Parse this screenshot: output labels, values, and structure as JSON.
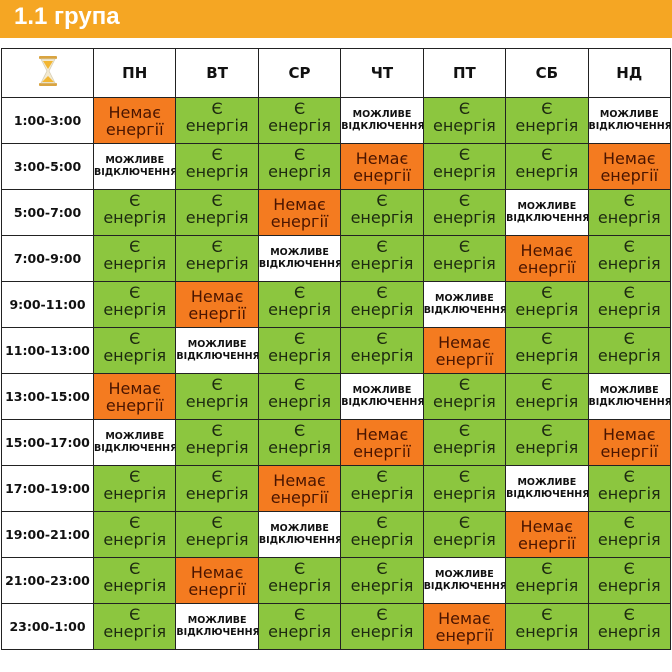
{
  "title": "1.1 група",
  "corner_icon": "hourglass-icon",
  "colors": {
    "header": "#f5a623",
    "no_power": "#f47b20",
    "power": "#8cc63f",
    "maybe": "#ffffff"
  },
  "days": [
    "ПН",
    "ВТ",
    "СР",
    "ЧТ",
    "ПТ",
    "СБ",
    "НД"
  ],
  "legend": {
    "E": [
      "Є",
      "енергія"
    ],
    "N": [
      "Немає",
      "енергії"
    ],
    "M": [
      "МОЖЛИВЕ",
      "ВІДКЛЮЧЕННЯ"
    ]
  },
  "rows": [
    {
      "time": "1:00-3:00",
      "cells": [
        "N",
        "E",
        "E",
        "M",
        "E",
        "E",
        "M"
      ]
    },
    {
      "time": "3:00-5:00",
      "cells": [
        "M",
        "E",
        "E",
        "N",
        "E",
        "E",
        "N"
      ]
    },
    {
      "time": "5:00-7:00",
      "cells": [
        "E",
        "E",
        "N",
        "E",
        "E",
        "M",
        "E"
      ]
    },
    {
      "time": "7:00-9:00",
      "cells": [
        "E",
        "E",
        "M",
        "E",
        "E",
        "N",
        "E"
      ]
    },
    {
      "time": "9:00-11:00",
      "cells": [
        "E",
        "N",
        "E",
        "E",
        "M",
        "E",
        "E"
      ]
    },
    {
      "time": "11:00-13:00",
      "cells": [
        "E",
        "M",
        "E",
        "E",
        "N",
        "E",
        "E"
      ]
    },
    {
      "time": "13:00-15:00",
      "cells": [
        "N",
        "E",
        "E",
        "M",
        "E",
        "E",
        "M"
      ]
    },
    {
      "time": "15:00-17:00",
      "cells": [
        "M",
        "E",
        "E",
        "N",
        "E",
        "E",
        "N"
      ]
    },
    {
      "time": "17:00-19:00",
      "cells": [
        "E",
        "E",
        "N",
        "E",
        "E",
        "M",
        "E"
      ]
    },
    {
      "time": "19:00-21:00",
      "cells": [
        "E",
        "E",
        "M",
        "E",
        "E",
        "N",
        "E"
      ]
    },
    {
      "time": "21:00-23:00",
      "cells": [
        "E",
        "N",
        "E",
        "E",
        "M",
        "E",
        "E"
      ]
    },
    {
      "time": "23:00-1:00",
      "cells": [
        "E",
        "M",
        "E",
        "E",
        "N",
        "E",
        "E"
      ]
    }
  ]
}
